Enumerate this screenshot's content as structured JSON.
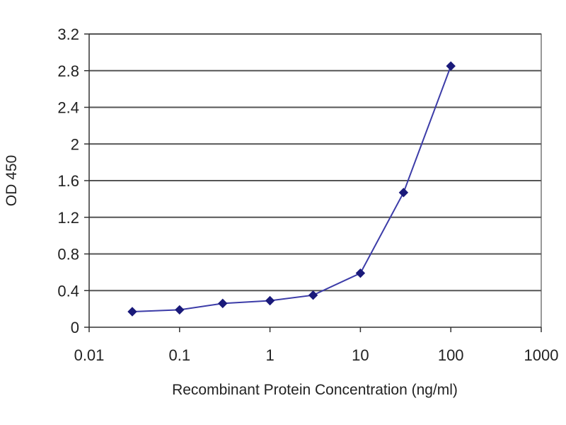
{
  "chart_data": {
    "type": "line",
    "title": "",
    "xlabel": "Recombinant Protein Concentration (ng/ml)",
    "ylabel": "OD 450",
    "x_scale": "log",
    "xlim": [
      0.01,
      1000
    ],
    "ylim": [
      0,
      3.2
    ],
    "x_ticks": [
      "0.01",
      "0.1",
      "1",
      "10",
      "100",
      "1000"
    ],
    "y_ticks": [
      "0",
      "0.4",
      "0.8",
      "1.2",
      "1.6",
      "2",
      "2.4",
      "2.8",
      "3.2"
    ],
    "grid": "horizontal",
    "legend": "none",
    "series": [
      {
        "color": "#1a1a7a",
        "marker": "diamond",
        "points": [
          {
            "x": 0.03,
            "y": 0.17
          },
          {
            "x": 0.1,
            "y": 0.19
          },
          {
            "x": 0.3,
            "y": 0.26
          },
          {
            "x": 1,
            "y": 0.29
          },
          {
            "x": 3,
            "y": 0.35
          },
          {
            "x": 10,
            "y": 0.59
          },
          {
            "x": 30,
            "y": 1.47
          },
          {
            "x": 100,
            "y": 2.85
          }
        ]
      }
    ]
  }
}
